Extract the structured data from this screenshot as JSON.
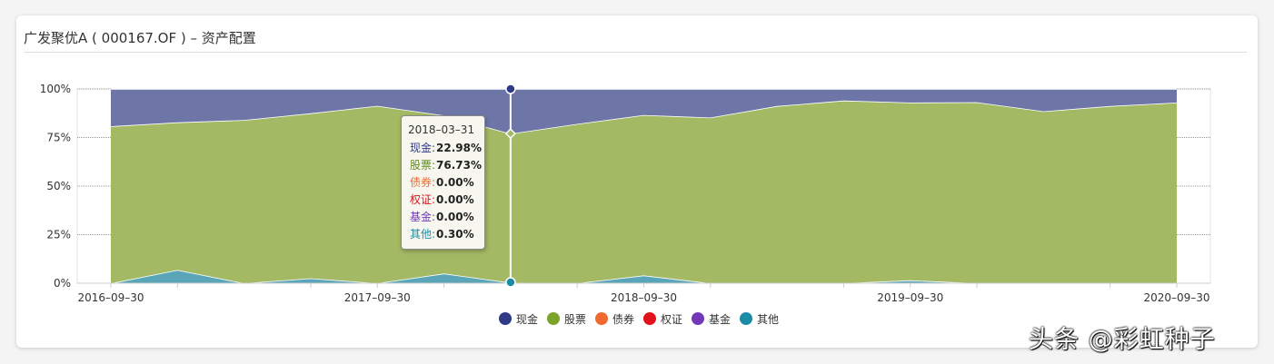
{
  "page": {
    "title": "广发聚优A ( 000167.OF ) – 资产配置"
  },
  "chart_data": {
    "type": "area",
    "stacking": "percent",
    "x_tick_labels": [
      "2016–09–30",
      "2017–09–30",
      "2018–09–30",
      "2019–09–30",
      "2020–09–30"
    ],
    "y_tick_labels": [
      "0%",
      "25%",
      "50%",
      "75%",
      "100%"
    ],
    "ylim": [
      0,
      100
    ],
    "x": [
      "2016-09-30",
      "2016-12-31",
      "2017-03-31",
      "2017-06-30",
      "2017-09-30",
      "2017-12-31",
      "2018-03-31",
      "2018-06-30",
      "2018-09-30",
      "2018-12-31",
      "2019-03-31",
      "2019-06-30",
      "2019-09-30",
      "2019-12-31",
      "2020-03-31",
      "2020-06-30",
      "2020-09-30"
    ],
    "series": [
      {
        "name": "现金",
        "color": "#6e76a8",
        "values": [
          19.2,
          17.2,
          16.0,
          12.5,
          8.7,
          13.6,
          22.98,
          18.0,
          13.4,
          14.7,
          8.8,
          6.0,
          7.0,
          6.8,
          11.5,
          8.8,
          7.0
        ]
      },
      {
        "name": "股票",
        "color": "#a3b964",
        "values": [
          80.8,
          76.0,
          84.0,
          85.0,
          91.3,
          81.4,
          76.73,
          82.0,
          82.6,
          85.3,
          91.2,
          94.0,
          91.5,
          93.2,
          88.5,
          91.2,
          93.0
        ]
      },
      {
        "name": "债券",
        "color": "#ef6a2c",
        "values": [
          0,
          0,
          0,
          0,
          0,
          0,
          0.0,
          0,
          0,
          0,
          0,
          0,
          0,
          0,
          0,
          0,
          0
        ]
      },
      {
        "name": "权证",
        "color": "#e2121d",
        "values": [
          0,
          0,
          0,
          0,
          0,
          0,
          0.0,
          0,
          0,
          0,
          0,
          0,
          0,
          0,
          0,
          0,
          0
        ]
      },
      {
        "name": "基金",
        "color": "#7338b7",
        "values": [
          0,
          0,
          0,
          0,
          0,
          0,
          0.0,
          0,
          0,
          0,
          0,
          0,
          0,
          0,
          0,
          0,
          0
        ]
      },
      {
        "name": "其他",
        "color": "#5aa6b8",
        "values": [
          0,
          6.8,
          0,
          2.5,
          0,
          5.0,
          0.3,
          0,
          4.0,
          0,
          0,
          0,
          1.5,
          0,
          0,
          0,
          0
        ]
      }
    ],
    "legend": [
      {
        "name": "现金",
        "color": "#2e3a87"
      },
      {
        "name": "股票",
        "color": "#7aa32b"
      },
      {
        "name": "债券",
        "color": "#ef6a2c"
      },
      {
        "name": "权证",
        "color": "#e2121d"
      },
      {
        "name": "基金",
        "color": "#7338b7"
      },
      {
        "name": "其他",
        "color": "#1b8ca6"
      }
    ],
    "tooltip": {
      "index": 6,
      "date": "2018–03–31",
      "rows": [
        {
          "name": "现金:",
          "value": "22.98%",
          "color": "#2e3a87"
        },
        {
          "name": "股票:",
          "value": "76.73%",
          "color": "#5f8a1e"
        },
        {
          "name": "债券:",
          "value": "0.00%",
          "color": "#ef6a2c"
        },
        {
          "name": "权证:",
          "value": "0.00%",
          "color": "#e2121d"
        },
        {
          "name": "基金:",
          "value": "0.00%",
          "color": "#7338b7"
        },
        {
          "name": "其他:",
          "value": "0.30%",
          "color": "#1b8ca6"
        }
      ]
    }
  },
  "watermark": "头条 @彩虹种子"
}
